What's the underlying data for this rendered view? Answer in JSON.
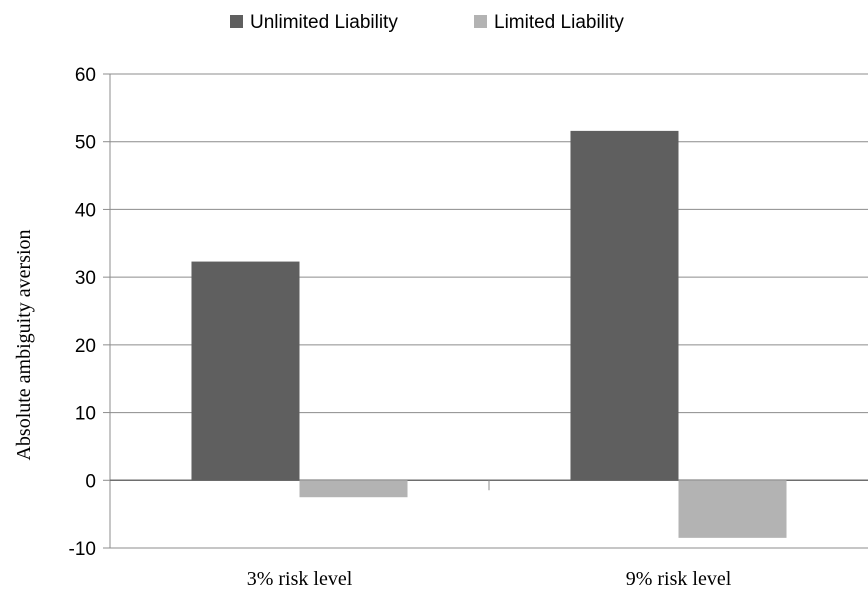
{
  "chart_data": {
    "type": "bar",
    "title": "",
    "xlabel": "",
    "ylabel": "Absolute ambiguity aversion",
    "categories": [
      "3% risk level",
      "9% risk level"
    ],
    "series": [
      {
        "name": "Unlimited Liability",
        "values": [
          32.3,
          51.6
        ],
        "color": "#5f5f5f"
      },
      {
        "name": "Limited Liability",
        "values": [
          -2.5,
          -8.5
        ],
        "color": "#b3b3b3"
      }
    ],
    "ylim": [
      -10,
      60
    ],
    "yticks": [
      -10,
      0,
      10,
      20,
      30,
      40,
      50,
      60
    ],
    "grid": true,
    "legend": "top-center"
  }
}
